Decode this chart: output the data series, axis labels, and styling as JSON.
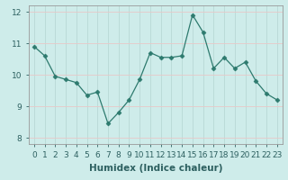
{
  "x": [
    0,
    1,
    2,
    3,
    4,
    5,
    6,
    7,
    8,
    9,
    10,
    11,
    12,
    13,
    14,
    15,
    16,
    17,
    18,
    19,
    20,
    21,
    22,
    23
  ],
  "y": [
    10.9,
    10.6,
    9.95,
    9.85,
    9.75,
    9.35,
    9.45,
    8.45,
    8.8,
    9.2,
    9.85,
    10.7,
    10.55,
    10.55,
    10.6,
    11.9,
    11.35,
    10.2,
    10.55,
    10.2,
    10.4,
    9.8,
    9.4,
    9.2
  ],
  "xlabel": "Humidex (Indice chaleur)",
  "xlim": [
    -0.5,
    23.5
  ],
  "ylim": [
    7.8,
    12.2
  ],
  "yticks": [
    8,
    9,
    10,
    11,
    12
  ],
  "xticks": [
    0,
    1,
    2,
    3,
    4,
    5,
    6,
    7,
    8,
    9,
    10,
    11,
    12,
    13,
    14,
    15,
    16,
    17,
    18,
    19,
    20,
    21,
    22,
    23
  ],
  "line_color": "#2d7a6e",
  "marker": "D",
  "marker_size": 2.5,
  "bg_color": "#ceecea",
  "grid_color_x": "#b8d8d5",
  "grid_color_y": "#e8c8c8",
  "axis_label_fontsize": 7.5,
  "tick_fontsize": 6.5
}
